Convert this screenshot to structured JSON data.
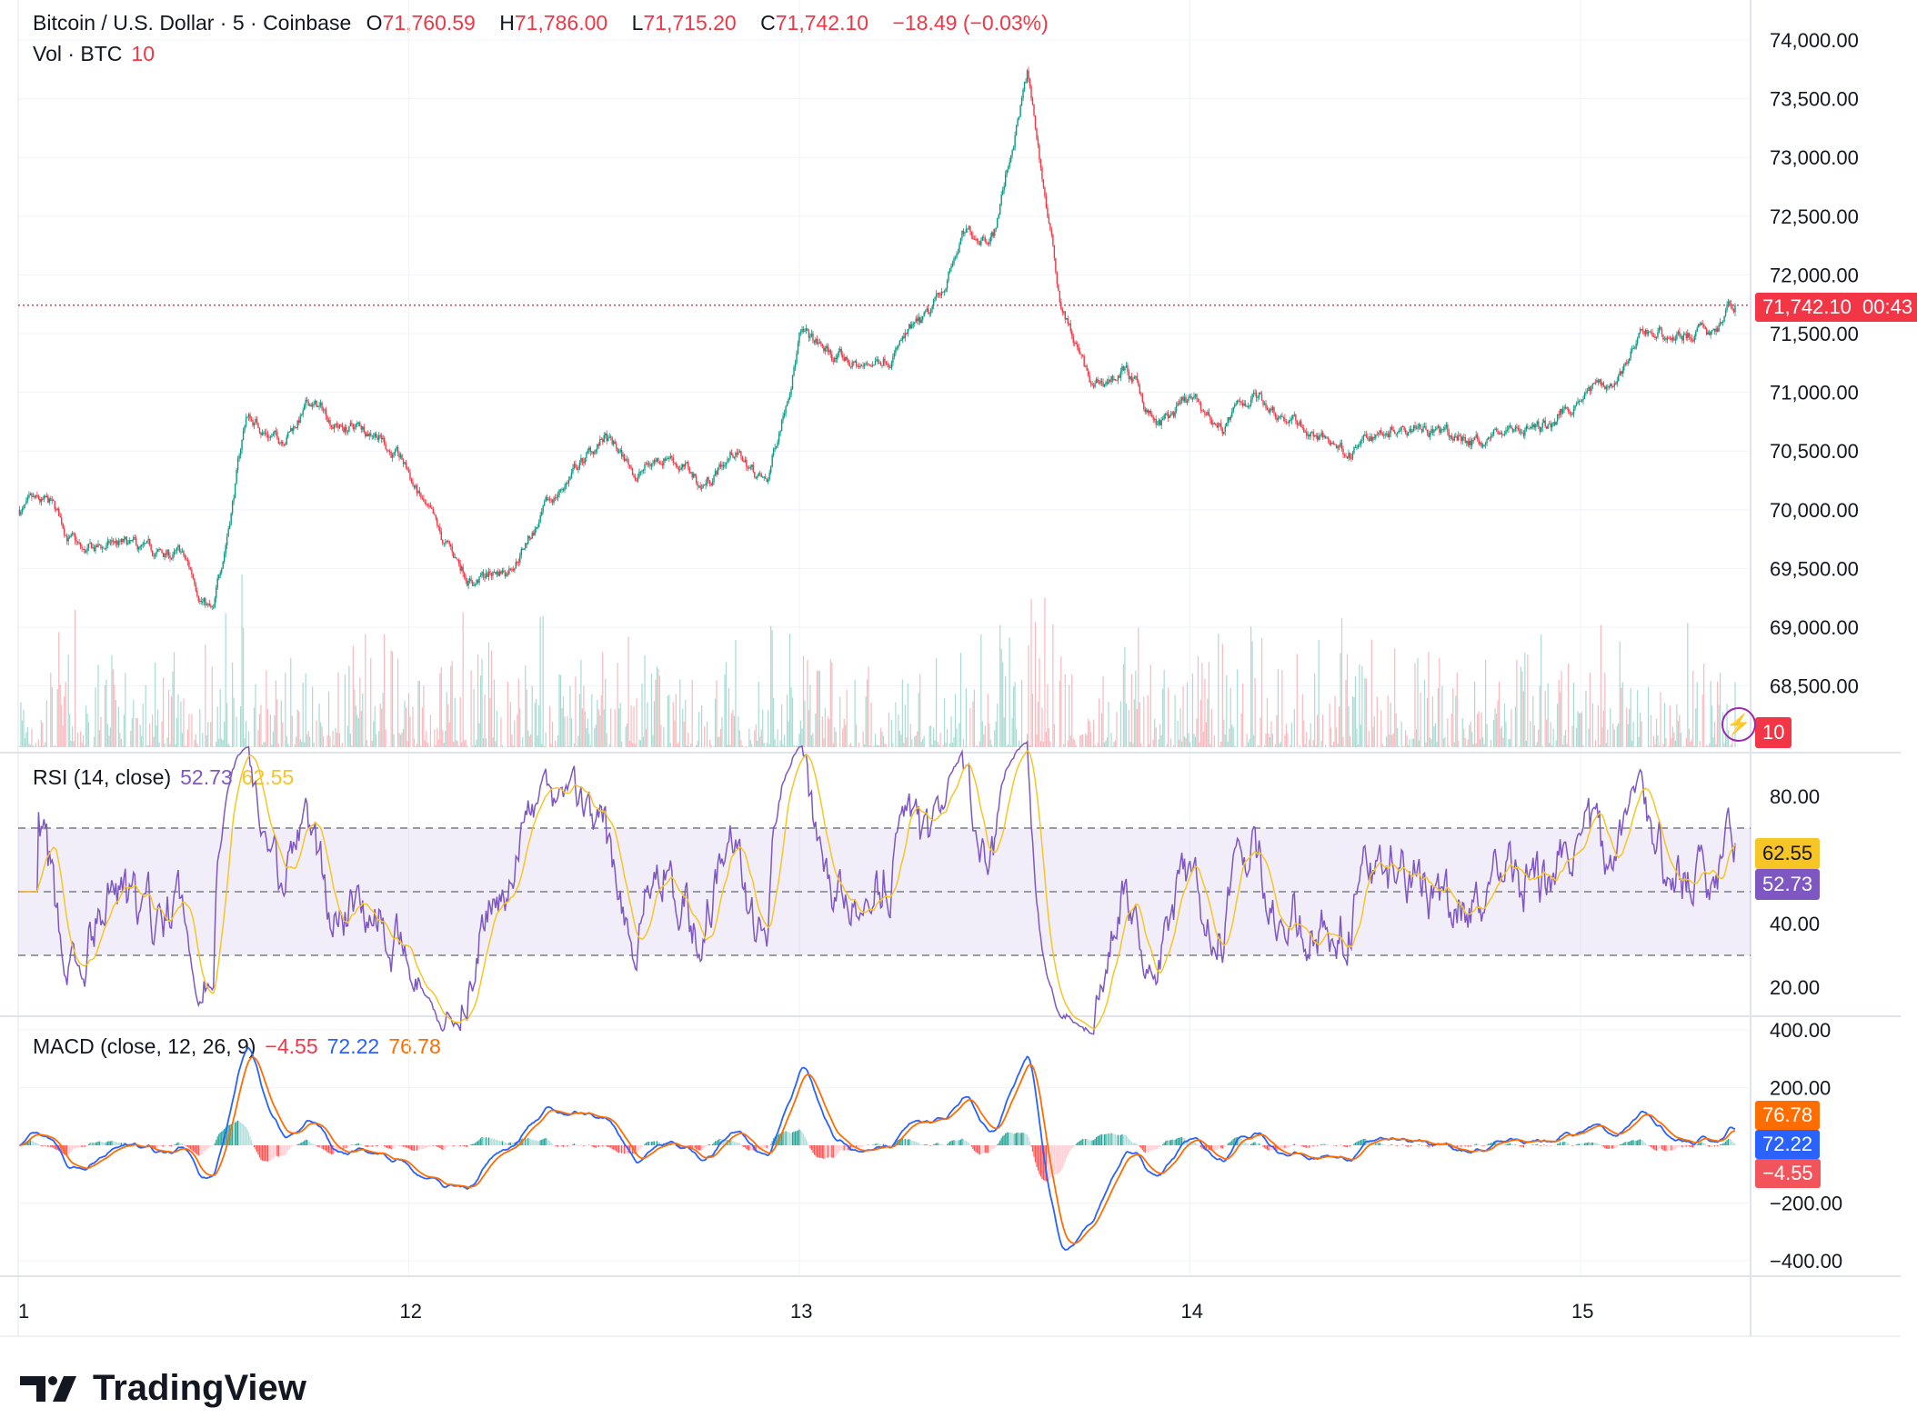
{
  "header": {
    "symbol": "Bitcoin / U.S. Dollar · 5 · Coinbase",
    "o_label": "O",
    "o": "71,760.59",
    "h_label": "H",
    "h": "71,786.00",
    "l_label": "L",
    "l": "71,715.20",
    "c_label": "C",
    "c": "71,742.10",
    "change": "−18.49 (−0.03%)",
    "vol_label": "Vol · BTC",
    "vol": "10"
  },
  "tags": {
    "price": "71,742.10",
    "countdown": "00:43",
    "volume": "10",
    "rsi_sma": "62.55",
    "rsi": "52.73",
    "macd_signal": "76.78",
    "macd": "72.22",
    "macd_hist": "−4.55"
  },
  "rsi_legend": {
    "label": "RSI (14, close)",
    "rsi": "52.73",
    "sma": "62.55"
  },
  "macd_legend": {
    "label": "MACD (close, 12, 26, 9)",
    "hist": "−4.55",
    "macd": "72.22",
    "signal": "76.78"
  },
  "logo": "TradingView",
  "colors": {
    "up": "#089981",
    "down": "#f23645",
    "rsi": "#7e57c2",
    "rsi_sma": "#f7c526",
    "macd": "#2962ff",
    "signal": "#ff6d00"
  },
  "chart_data": {
    "type": "candlestick",
    "price_ticks": [
      "74,000.00",
      "73,500.00",
      "73,000.00",
      "72,500.00",
      "72,000.00",
      "71,500.00",
      "71,000.00",
      "70,500.00",
      "70,000.00",
      "69,500.00",
      "69,000.00",
      "68,500.00"
    ],
    "ylim": [
      68100,
      74100
    ],
    "rsi_ticks": [
      "80.00",
      "40.00",
      "20.00"
    ],
    "rsi_bands": [
      70,
      50,
      30
    ],
    "macd_ticks": [
      "400.00",
      "200.00",
      "−200.00",
      "−400.00"
    ],
    "x_ticks": [
      "1",
      "12",
      "13",
      "14",
      "15"
    ],
    "x": [
      "11 00:00",
      "11 02:00",
      "11 04:00",
      "11 06:00",
      "11 08:00",
      "11 10:00",
      "11 12:00",
      "11 14:00",
      "11 16:00",
      "11 18:00",
      "11 20:00",
      "11 22:00",
      "12 00:00",
      "12 02:00",
      "12 04:00",
      "12 06:00",
      "12 08:00",
      "12 10:00",
      "12 12:00",
      "12 14:00",
      "12 16:00",
      "12 18:00",
      "12 20:00",
      "12 22:00",
      "13 00:00",
      "13 02:00",
      "13 04:00",
      "13 06:00",
      "13 08:00",
      "13 10:00",
      "13 12:00",
      "13 14:00",
      "13 16:00",
      "13 18:00",
      "13 20:00",
      "13 22:00",
      "14 00:00",
      "14 02:00",
      "14 04:00",
      "14 06:00",
      "14 08:00",
      "14 10:00",
      "14 12:00",
      "14 14:00",
      "14 16:00",
      "14 18:00",
      "14 20:00",
      "14 22:00",
      "15 00:00",
      "15 02:00",
      "15 04:00",
      "15 06:00",
      "15 08:00",
      "15 09:30"
    ],
    "close": [
      70000,
      70000,
      69600,
      69700,
      69600,
      69600,
      69100,
      70800,
      70600,
      70900,
      70700,
      70700,
      70300,
      69700,
      69400,
      69500,
      69900,
      70300,
      70600,
      70300,
      70500,
      70200,
      70500,
      70200,
      71500,
      71300,
      71200,
      71400,
      71600,
      72300,
      72400,
      73700,
      71800,
      71000,
      71200,
      70700,
      70900,
      70700,
      71000,
      70800,
      70600,
      70500,
      70700,
      70800,
      70600,
      70600,
      70700,
      70700,
      71000,
      71100,
      71500,
      71500,
      71500,
      71742.1
    ]
  }
}
